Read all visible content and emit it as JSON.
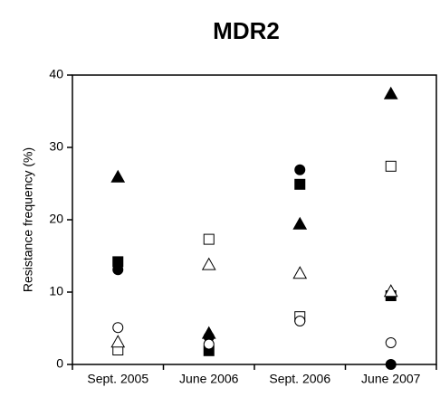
{
  "chart_data": {
    "type": "dotplot",
    "title": "MDR2",
    "y_label": "Resistance frequency (%)",
    "categories": [
      "Sept. 2005",
      "June 2006",
      "Sept. 2006",
      "June 2007"
    ],
    "ylim": [
      0,
      40
    ],
    "yticks": [
      0,
      10,
      20,
      30,
      40
    ],
    "series": [
      {
        "marker": "triangle",
        "filled": true,
        "color": "#000000",
        "values": [
          25.9,
          4.3,
          19.4,
          37.4
        ]
      },
      {
        "marker": "square",
        "filled": false,
        "color": "#000000",
        "values": [
          2.0,
          17.3,
          6.6,
          27.4
        ]
      },
      {
        "marker": "square",
        "filled": true,
        "color": "#000000",
        "values": [
          14.2,
          1.9,
          24.9,
          9.5
        ]
      },
      {
        "marker": "circle",
        "filled": true,
        "color": "#000000",
        "values": [
          13.1,
          3.8,
          26.9,
          0
        ]
      },
      {
        "marker": "circle",
        "filled": false,
        "color": "#000000",
        "values": [
          5.1,
          2.8,
          6.0,
          3.0
        ]
      },
      {
        "marker": "triangle",
        "filled": false,
        "color": "#000000",
        "values": [
          3.1,
          13.8,
          12.6,
          10.1
        ]
      }
    ]
  }
}
